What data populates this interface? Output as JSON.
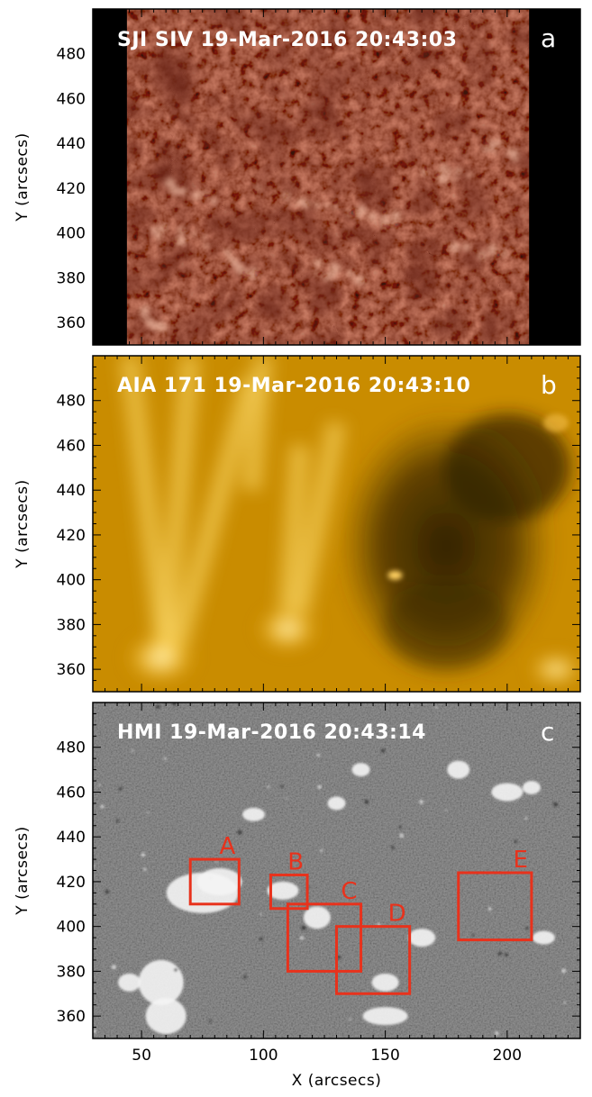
{
  "figure": {
    "xlabel": "X (arcsecs)",
    "ylabel": "Y (arcsecs)",
    "x_ticks": [
      "50",
      "100",
      "150",
      "200"
    ],
    "y_ticks": [
      "360",
      "380",
      "400",
      "420",
      "440",
      "460",
      "480"
    ],
    "xlim": [
      30,
      230
    ],
    "ylim": [
      350,
      500
    ],
    "box_color": "#e8321c",
    "panels": [
      {
        "title": "SJI SIV 19-Mar-2016 20:43:03",
        "letter": "a",
        "colormap": "iris-sji-1400-red"
      },
      {
        "title": "AIA 171 19-Mar-2016 20:43:10",
        "letter": "b",
        "colormap": "sdo-aia-171-gold"
      },
      {
        "title": "HMI 19-Mar-2016 20:43:14",
        "letter": "c",
        "colormap": "grayscale-magnetogram"
      }
    ],
    "regions": [
      {
        "label": "A",
        "x": [
          70,
          90
        ],
        "y": [
          410,
          430
        ]
      },
      {
        "label": "B",
        "x": [
          103,
          118
        ],
        "y": [
          408,
          423
        ]
      },
      {
        "label": "C",
        "x": [
          110,
          140
        ],
        "y": [
          380,
          410
        ]
      },
      {
        "label": "D",
        "x": [
          130,
          160
        ],
        "y": [
          370,
          400
        ]
      },
      {
        "label": "E",
        "x": [
          180,
          210
        ],
        "y": [
          394,
          424
        ]
      }
    ]
  }
}
